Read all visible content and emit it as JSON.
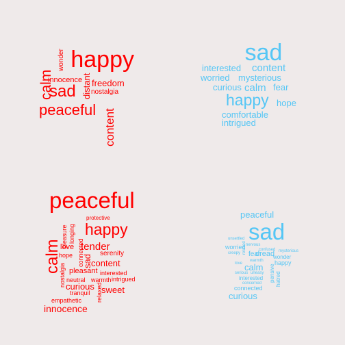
{
  "chart_data": {
    "type": "wordcloud",
    "panels": [
      {
        "name": "top-left",
        "color": "#ff0000",
        "words": [
          {
            "text": "happy",
            "weight": 10
          },
          {
            "text": "wonder",
            "weight": 2
          },
          {
            "text": "innocence",
            "weight": 2.5
          },
          {
            "text": "freedom",
            "weight": 3
          },
          {
            "text": "calm",
            "weight": 5.5
          },
          {
            "text": "sad",
            "weight": 6.5
          },
          {
            "text": "distant",
            "weight": 3
          },
          {
            "text": "nostalgia",
            "weight": 2.5
          },
          {
            "text": "peaceful",
            "weight": 6
          },
          {
            "text": "content",
            "weight": 4.5
          }
        ]
      },
      {
        "name": "top-right",
        "color": "#55c6f5",
        "words": [
          {
            "text": "sad",
            "weight": 10
          },
          {
            "text": "interested",
            "weight": 3.5
          },
          {
            "text": "content",
            "weight": 4.5
          },
          {
            "text": "worried",
            "weight": 3.5
          },
          {
            "text": "mysterious",
            "weight": 3.5
          },
          {
            "text": "curious",
            "weight": 3.5
          },
          {
            "text": "calm",
            "weight": 4.5
          },
          {
            "text": "fear",
            "weight": 3.5
          },
          {
            "text": "happy",
            "weight": 7
          },
          {
            "text": "hope",
            "weight": 3.5
          },
          {
            "text": "comfortable",
            "weight": 3.5
          },
          {
            "text": "intrigued",
            "weight": 3.5
          }
        ]
      },
      {
        "name": "bottom-left",
        "color": "#ff0000",
        "words": [
          {
            "text": "peaceful",
            "weight": 10
          },
          {
            "text": "protective",
            "weight": 2
          },
          {
            "text": "happy",
            "weight": 6.5
          },
          {
            "text": "pleasure",
            "weight": 2
          },
          {
            "text": "longing",
            "weight": 2
          },
          {
            "text": "calm",
            "weight": 7
          },
          {
            "text": "love",
            "weight": 3
          },
          {
            "text": "connected",
            "weight": 2
          },
          {
            "text": "tender",
            "weight": 4
          },
          {
            "text": "sad",
            "weight": 3.5
          },
          {
            "text": "hope",
            "weight": 2.5
          },
          {
            "text": "serenity",
            "weight": 2.5
          },
          {
            "text": "content",
            "weight": 3.5
          },
          {
            "text": "nostalgia",
            "weight": 2
          },
          {
            "text": "pleasant",
            "weight": 2.5
          },
          {
            "text": "interested",
            "weight": 2
          },
          {
            "text": "neutral",
            "weight": 2
          },
          {
            "text": "warmth",
            "weight": 2
          },
          {
            "text": "intrigued",
            "weight": 2
          },
          {
            "text": "curious",
            "weight": 3
          },
          {
            "text": "sweet",
            "weight": 3
          },
          {
            "text": "tranquil",
            "weight": 2
          },
          {
            "text": "relaxed",
            "weight": 2
          },
          {
            "text": "empathetic",
            "weight": 2
          },
          {
            "text": "innocence",
            "weight": 3.5
          }
        ]
      },
      {
        "name": "bottom-right",
        "color": "#55c6f5",
        "words": [
          {
            "text": "peaceful",
            "weight": 3.5
          },
          {
            "text": "sad",
            "weight": 10
          },
          {
            "text": "unsettled",
            "weight": 1.5
          },
          {
            "text": "nervous",
            "weight": 1.5
          },
          {
            "text": "worried",
            "weight": 2
          },
          {
            "text": "relaxed",
            "weight": 1.5
          },
          {
            "text": "fear",
            "weight": 2.5
          },
          {
            "text": "confused",
            "weight": 1.5
          },
          {
            "text": "creepy",
            "weight": 1.5
          },
          {
            "text": "mysterious",
            "weight": 1.5
          },
          {
            "text": "dread",
            "weight": 2.5
          },
          {
            "text": "wonder",
            "weight": 2
          },
          {
            "text": "warmth",
            "weight": 1.5
          },
          {
            "text": "calm",
            "weight": 3.5
          },
          {
            "text": "love",
            "weight": 1.5
          },
          {
            "text": "happy",
            "weight": 2.5
          },
          {
            "text": "serious",
            "weight": 1.5
          },
          {
            "text": "uneasy",
            "weight": 1.5
          },
          {
            "text": "pensive",
            "weight": 2
          },
          {
            "text": "interested",
            "weight": 2
          },
          {
            "text": "hatred",
            "weight": 2
          },
          {
            "text": "concerned",
            "weight": 1.5
          },
          {
            "text": "connected",
            "weight": 2.5
          },
          {
            "text": "curious",
            "weight": 3.5
          }
        ]
      }
    ]
  }
}
